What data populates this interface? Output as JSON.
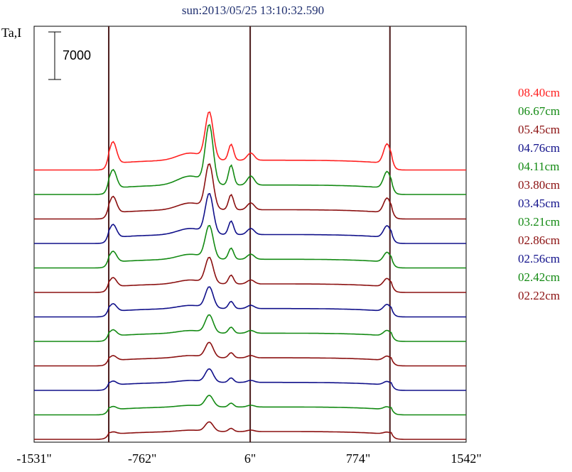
{
  "chart_data": {
    "type": "line",
    "title": "sun:2013/05/25 13:10:32.590",
    "ylabel": "Ta,I",
    "scale_bar_label": "7000",
    "x_ticks": [
      "-1531\"",
      "-762\"",
      "6\"",
      "774\"",
      "1542\""
    ],
    "x_tick_values": [
      -1531,
      -762,
      6,
      774,
      1542
    ],
    "xlim": [
      -1531,
      1542
    ],
    "vertical_lines_x": [
      -1000,
      6,
      1000
    ],
    "grid": false,
    "legend_position": "right",
    "series": [
      {
        "name": "08.40cm",
        "color": "#ff2020",
        "offset": 11,
        "amplitude": 1.0,
        "limb_peak": 1.0
      },
      {
        "name": "06.67cm",
        "color": "#138a13",
        "offset": 10,
        "amplitude": 1.25,
        "limb_peak": 0.85
      },
      {
        "name": "05.45cm",
        "color": "#8b1010",
        "offset": 9,
        "amplitude": 0.95,
        "limb_peak": 0.75
      },
      {
        "name": "04.76cm",
        "color": "#10108a",
        "offset": 8,
        "amplitude": 0.85,
        "limb_peak": 0.6
      },
      {
        "name": "04.11cm",
        "color": "#138a13",
        "offset": 7,
        "amplitude": 0.7,
        "limb_peak": 0.5
      },
      {
        "name": "03.80cm",
        "color": "#8b1010",
        "offset": 6,
        "amplitude": 0.55,
        "limb_peak": 0.42
      },
      {
        "name": "03.45cm",
        "color": "#10108a",
        "offset": 5,
        "amplitude": 0.45,
        "limb_peak": 0.35
      },
      {
        "name": "03.21cm",
        "color": "#138a13",
        "offset": 4,
        "amplitude": 0.38,
        "limb_peak": 0.28
      },
      {
        "name": "02.86cm",
        "color": "#8b1010",
        "offset": 3,
        "amplitude": 0.32,
        "limb_peak": 0.22
      },
      {
        "name": "02.56cm",
        "color": "#10108a",
        "offset": 2,
        "amplitude": 0.28,
        "limb_peak": 0.18
      },
      {
        "name": "02.42cm",
        "color": "#138a13",
        "offset": 1,
        "amplitude": 0.24,
        "limb_peak": 0.14
      },
      {
        "name": "02.22cm",
        "color": "#8b1010",
        "offset": 0,
        "amplitude": 0.2,
        "limb_peak": 0.1
      }
    ]
  }
}
